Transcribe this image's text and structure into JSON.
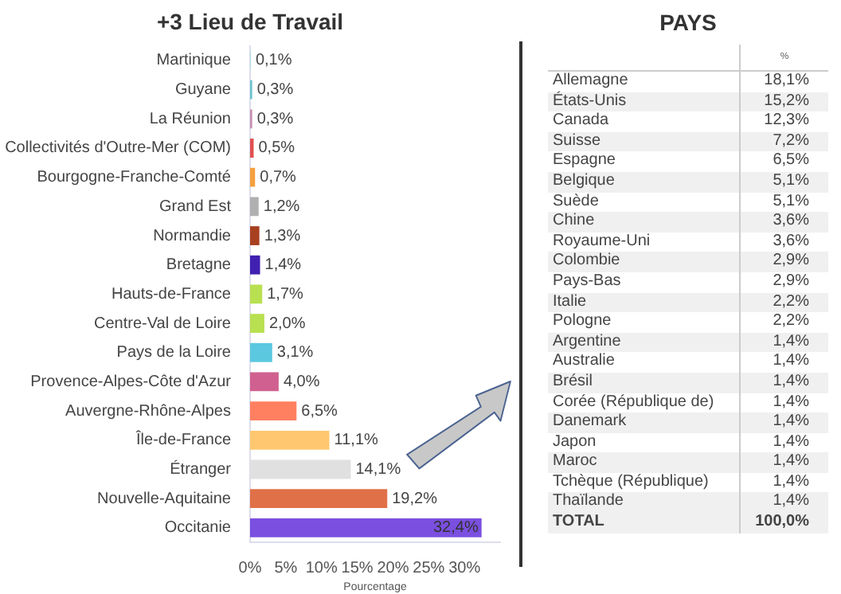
{
  "chart_data": [
    {
      "type": "bar",
      "orientation": "horizontal",
      "title": "+3 Lieu de Travail",
      "xlabel": "Pourcentage",
      "categories": [
        "Martinique",
        "Guyane",
        "La Réunion",
        "Collectivités d'Outre-Mer (COM)",
        "Bourgogne-Franche-Comté",
        "Grand Est",
        "Normandie",
        "Bretagne",
        "Hauts-de-France",
        "Centre-Val de Loire",
        "Pays de la Loire",
        "Provence-Alpes-Côte d'Azur",
        "Auvergne-Rhône-Alpes",
        "Île-de-France",
        "Étranger",
        "Nouvelle-Aquitaine",
        "Occitanie"
      ],
      "values": [
        0.1,
        0.3,
        0.3,
        0.5,
        0.7,
        1.2,
        1.3,
        1.4,
        1.7,
        2.0,
        3.1,
        4.0,
        6.5,
        11.1,
        14.1,
        19.2,
        32.4
      ],
      "value_labels": [
        "0,1%",
        "0,3%",
        "0,3%",
        "0,5%",
        "0,7%",
        "1,2%",
        "1,3%",
        "1,4%",
        "1,7%",
        "2,0%",
        "3,1%",
        "4,0%",
        "6,5%",
        "11,1%",
        "14,1%",
        "19,2%",
        "32,4%"
      ],
      "colors": [
        "#a8dce4",
        "#6cc5d0",
        "#c890b0",
        "#e05050",
        "#f5a040",
        "#b0b0b0",
        "#a84020",
        "#4020b0",
        "#b8e050",
        "#b8e050",
        "#5bc8e0",
        "#d06090",
        "#ff8060",
        "#ffc870",
        "#e0e0e0",
        "#e07048",
        "#7b4fe0"
      ],
      "xlim": [
        0,
        35
      ],
      "xticks": [
        {
          "value": 0,
          "label": "0%"
        },
        {
          "value": 5,
          "label": "5%"
        },
        {
          "value": 10,
          "label": "10%"
        },
        {
          "value": 15,
          "label": "15%"
        },
        {
          "value": 20,
          "label": "20%"
        },
        {
          "value": 25,
          "label": "25%"
        },
        {
          "value": 30,
          "label": "30%"
        }
      ],
      "grid": false,
      "legend": false
    },
    {
      "type": "other",
      "title": "PAYS",
      "ylabel": "%",
      "categories": [
        "Allemagne",
        "États-Unis",
        "Canada",
        "Suisse",
        "Espagne",
        "Belgique",
        "Suède",
        "Chine",
        "Royaume-Uni",
        "Colombie",
        "Pays-Bas",
        "Italie",
        "Pologne",
        "Argentine",
        "Australie",
        "Brésil",
        "Corée (République de)",
        "Danemark",
        "Japon",
        "Maroc",
        "Tchèque (République)",
        "Thaïlande",
        "TOTAL"
      ],
      "values": [
        18.1,
        15.2,
        12.3,
        7.2,
        6.5,
        5.1,
        5.1,
        3.6,
        3.6,
        2.9,
        2.9,
        2.2,
        2.2,
        1.4,
        1.4,
        1.4,
        1.4,
        1.4,
        1.4,
        1.4,
        1.4,
        1.4,
        100.0
      ],
      "value_labels": [
        "18,1%",
        "15,2%",
        "12,3%",
        "7,2%",
        "6,5%",
        "5,1%",
        "5,1%",
        "3,6%",
        "3,6%",
        "2,9%",
        "2,9%",
        "2,2%",
        "2,2%",
        "1,4%",
        "1,4%",
        "1,4%",
        "1,4%",
        "1,4%",
        "1,4%",
        "1,4%",
        "1,4%",
        "1,4%",
        "100,0%"
      ]
    }
  ]
}
